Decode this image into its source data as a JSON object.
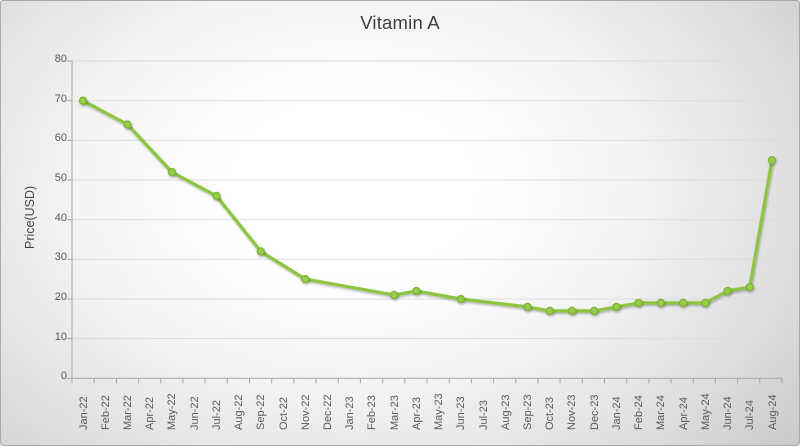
{
  "colors": {
    "line": "#8CC63F",
    "marker_fill": "#97CE49",
    "marker_stroke": "#7DB334",
    "gridline": "#dcdcdc",
    "axis": "#a6a6a6",
    "tick_text": "#595959",
    "title_text": "#404040",
    "background_center": "#ffffff",
    "background_edge": "#c5c5c5"
  },
  "chart_data": {
    "type": "line",
    "title": "Vitamin A",
    "xlabel": "",
    "ylabel": "Price(USD)",
    "ylim": [
      0,
      80
    ],
    "yticks": [
      0,
      10,
      20,
      30,
      40,
      50,
      60,
      70,
      80
    ],
    "grid": "horizontal",
    "legend": "none",
    "categories": [
      "Jan-22",
      "Feb-22",
      "Mar-22",
      "Apr-22",
      "May-22",
      "Jun-22",
      "Jul-22",
      "Aug-22",
      "Sep-22",
      "Oct-22",
      "Nov-22",
      "Dec-22",
      "Jan-23",
      "Feb-23",
      "Mar-23",
      "Apr-23",
      "May-23",
      "Jun-23",
      "Jul-23",
      "Aug-23",
      "Sep-23",
      "Oct-23",
      "Nov-23",
      "Dec-23",
      "Jan-24",
      "Feb-24",
      "Mar-24",
      "Apr-24",
      "May-24",
      "Jun-24",
      "Jul-24",
      "Aug-24"
    ],
    "series": [
      {
        "name": "Vitamin A",
        "color": "#8CC63F",
        "marker": "circle",
        "connect_missing": true,
        "values": [
          70,
          null,
          64,
          null,
          52,
          null,
          46,
          null,
          32,
          null,
          25,
          null,
          null,
          null,
          21,
          22,
          null,
          20,
          null,
          null,
          18,
          17,
          17,
          17,
          18,
          19,
          19,
          19,
          19,
          22,
          23,
          55
        ]
      }
    ]
  }
}
